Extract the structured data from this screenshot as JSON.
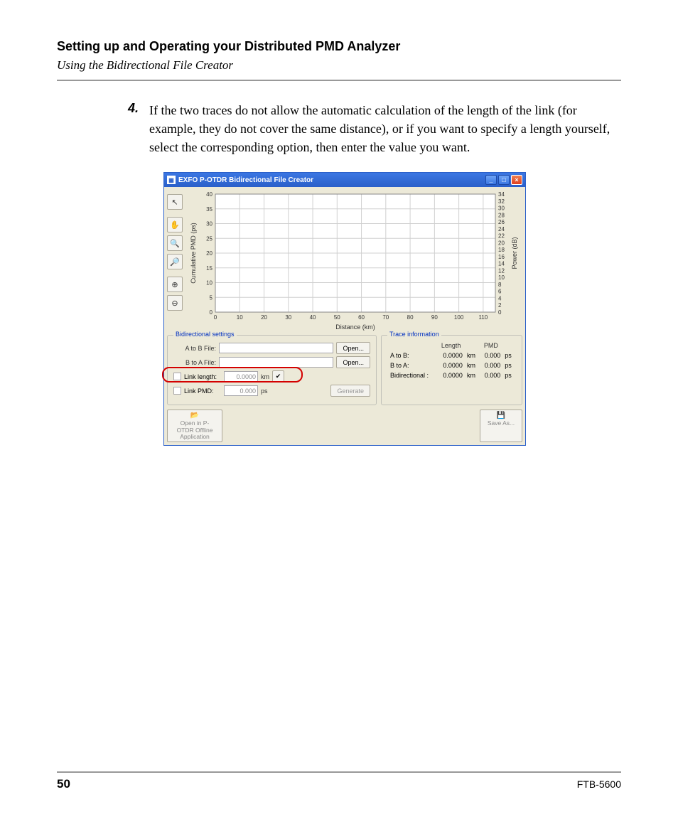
{
  "header": {
    "title": "Setting up and Operating your Distributed PMD Analyzer",
    "subtitle": "Using the Bidirectional File Creator"
  },
  "step": {
    "number": "4.",
    "text": "If the two traces do not allow the automatic calculation of the length of the link (for example, they do not cover the same distance), or if you want to specify a length yourself, select the corresponding option, then enter the value you want."
  },
  "window": {
    "title": "EXFO P-OTDR Bidirectional File Creator",
    "toolbar_icons": [
      "arrow",
      "hand",
      "zoom-in",
      "zoom-out",
      "zoom-plus",
      "zoom-minus"
    ]
  },
  "chart": {
    "type": "line",
    "x_label": "Distance (km)",
    "y_label_left": "Cumulative PMD (ps)",
    "y_label_right": "Power (dB)",
    "x_ticks": [
      0,
      10,
      20,
      30,
      40,
      50,
      60,
      70,
      80,
      90,
      100,
      110
    ],
    "y_left_ticks": [
      0,
      5,
      10,
      15,
      20,
      25,
      30,
      35,
      40
    ],
    "y_right_ticks": [
      0,
      2,
      4,
      6,
      8,
      10,
      12,
      14,
      16,
      18,
      20,
      22,
      24,
      26,
      28,
      30,
      32,
      34
    ],
    "xlim": [
      0,
      115
    ],
    "ylim_left": [
      0,
      40
    ],
    "ylim_right": [
      0,
      34
    ],
    "grid_color": "#d0d0d0",
    "background_color": "#ffffff",
    "border_color": "#888888",
    "tick_fontsize": 8,
    "label_fontsize": 9
  },
  "settings": {
    "panel_title": "Bidirectional settings",
    "a_to_b_label": "A to B File:",
    "b_to_a_label": "B to A File:",
    "open_label": "Open...",
    "link_length_label": "Link length:",
    "link_length_value": "0.0000",
    "link_length_unit": "km",
    "link_pmd_label": "Link PMD:",
    "link_pmd_value": "0.000",
    "link_pmd_unit": "ps",
    "generate_label": "Generate"
  },
  "info": {
    "panel_title": "Trace information",
    "col_length": "Length",
    "col_pmd": "PMD",
    "rows": [
      {
        "label": "A to B:",
        "length": "0.0000",
        "length_unit": "km",
        "pmd": "0.000",
        "pmd_unit": "ps"
      },
      {
        "label": "B to A:",
        "length": "0.0000",
        "length_unit": "km",
        "pmd": "0.000",
        "pmd_unit": "ps"
      },
      {
        "label": "Bidirectional :",
        "length": "0.0000",
        "length_unit": "km",
        "pmd": "0.000",
        "pmd_unit": "ps"
      }
    ]
  },
  "bottom": {
    "open_btn": "Open in P-OTDR Offline Application",
    "save_btn": "Save As..."
  },
  "footer": {
    "page": "50",
    "doc": "FTB-5600"
  },
  "colors": {
    "titlebar_bg": "#2a5fc9",
    "panel_title": "#0030c0",
    "callout": "#d40000",
    "win_bg": "#ece9d8"
  }
}
